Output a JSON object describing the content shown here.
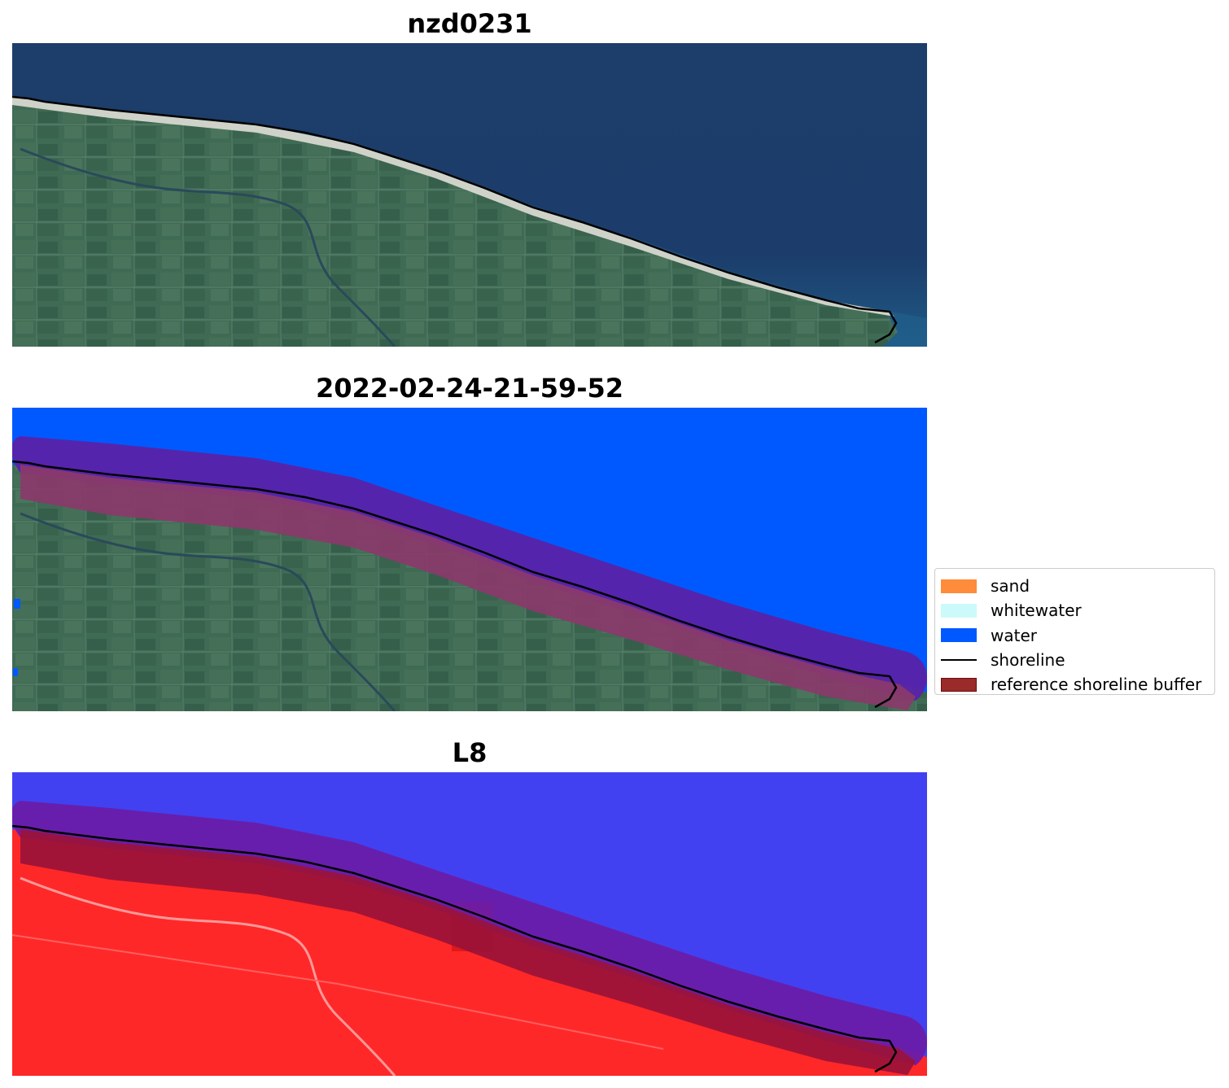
{
  "panels": [
    {
      "title": "nzd0231",
      "view": "rgb"
    },
    {
      "title": "2022-02-24-21-59-52",
      "view": "classified"
    },
    {
      "title": "L8",
      "view": "index"
    }
  ],
  "legend": {
    "items": [
      {
        "label": "sand",
        "color": "#ff8c3a",
        "kind": "patch"
      },
      {
        "label": "whitewater",
        "color": "#ccfafa",
        "kind": "patch"
      },
      {
        "label": "water",
        "color": "#0059ff",
        "kind": "patch"
      },
      {
        "label": "shoreline",
        "color": "#000000",
        "kind": "line"
      },
      {
        "label": "reference shoreline buffer",
        "color": "#9b2a2a",
        "kind": "patch",
        "edge": "#6b0f0f"
      }
    ]
  },
  "colors": {
    "ocean_dark": "#1d3a66",
    "ocean_near": "#1f5f8a",
    "land": "#3d6a52",
    "beach": "#d8d8d0",
    "classified_water": "#0059ff",
    "buffer_over_water": "#5a22a8",
    "buffer_over_land": "#8a3a6a",
    "index_water": "#4040f0",
    "index_land": "#ff2a2a",
    "index_buffer_water": "#6a1ca8",
    "index_buffer_land": "#9a1238",
    "shoreline": "#000000"
  }
}
